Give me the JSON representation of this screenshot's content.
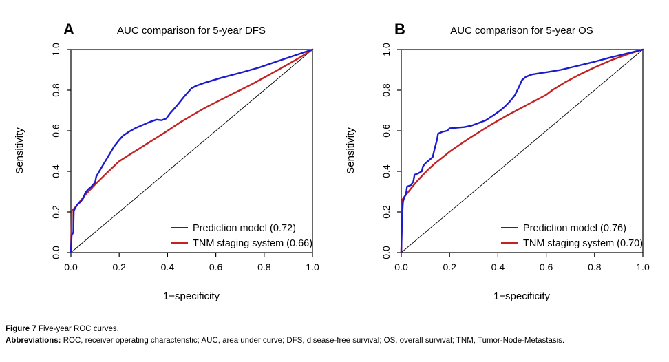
{
  "figure": {
    "caption_label": "Figure 7",
    "caption_text": "Five-year ROC curves.",
    "abbrev_label": "Abbreviations:",
    "abbrev_text": "ROC, receiver operating characteristic; AUC, area under curve; DFS, disease-free survival; OS, overall survival; TNM, Tumor-Node-Metastasis."
  },
  "colors": {
    "prediction_model": "#1b1bce",
    "tnm_staging": "#c32222",
    "reference": "#000000",
    "axis": "#000000"
  },
  "chart_data": [
    {
      "type": "line",
      "panel_label": "A",
      "title": "AUC comparison for 5-year DFS",
      "xlabel": "1−specificity",
      "ylabel": "Sensitivity",
      "xlim": [
        0,
        1
      ],
      "ylim": [
        0,
        1
      ],
      "grid": false,
      "legend_position": "bottom-right",
      "x_ticks": [
        0.0,
        0.2,
        0.4,
        0.6,
        0.8,
        1.0
      ],
      "y_ticks": [
        0.0,
        0.2,
        0.4,
        0.6,
        0.8,
        1.0
      ],
      "x_tick_labels": [
        "0.0",
        "0.2",
        "0.4",
        "0.6",
        "0.8",
        "1.0"
      ],
      "y_tick_labels": [
        "0.0",
        "0.2",
        "0.4",
        "0.6",
        "0.8",
        "1.0"
      ],
      "series": [
        {
          "name": "Prediction model",
          "auc": 0.72,
          "legend_label": "Prediction model (0.72)",
          "color": "#1b1bce",
          "role": "curve",
          "points": [
            [
              0,
              0
            ],
            [
              0.003,
              0.085
            ],
            [
              0.01,
              0.1
            ],
            [
              0.012,
              0.205
            ],
            [
              0.025,
              0.235
            ],
            [
              0.04,
              0.25
            ],
            [
              0.05,
              0.265
            ],
            [
              0.06,
              0.295
            ],
            [
              0.07,
              0.31
            ],
            [
              0.085,
              0.325
            ],
            [
              0.1,
              0.345
            ],
            [
              0.105,
              0.375
            ],
            [
              0.12,
              0.405
            ],
            [
              0.14,
              0.445
            ],
            [
              0.16,
              0.485
            ],
            [
              0.18,
              0.525
            ],
            [
              0.2,
              0.555
            ],
            [
              0.215,
              0.575
            ],
            [
              0.24,
              0.595
            ],
            [
              0.27,
              0.615
            ],
            [
              0.3,
              0.63
            ],
            [
              0.33,
              0.645
            ],
            [
              0.355,
              0.655
            ],
            [
              0.375,
              0.652
            ],
            [
              0.395,
              0.66
            ],
            [
              0.41,
              0.685
            ],
            [
              0.44,
              0.725
            ],
            [
              0.47,
              0.77
            ],
            [
              0.5,
              0.81
            ],
            [
              0.52,
              0.822
            ],
            [
              0.55,
              0.835
            ],
            [
              0.62,
              0.86
            ],
            [
              0.7,
              0.885
            ],
            [
              0.78,
              0.912
            ],
            [
              0.87,
              0.948
            ],
            [
              1,
              1
            ]
          ]
        },
        {
          "name": "TNM staging system",
          "auc": 0.66,
          "legend_label": "TNM staging system (0.66)",
          "color": "#c32222",
          "role": "curve",
          "points": [
            [
              0,
              0
            ],
            [
              0.004,
              0.205
            ],
            [
              0.02,
              0.225
            ],
            [
              0.04,
              0.255
            ],
            [
              0.06,
              0.285
            ],
            [
              0.08,
              0.31
            ],
            [
              0.1,
              0.335
            ],
            [
              0.13,
              0.37
            ],
            [
              0.16,
              0.405
            ],
            [
              0.2,
              0.45
            ],
            [
              0.24,
              0.48
            ],
            [
              0.28,
              0.51
            ],
            [
              0.32,
              0.54
            ],
            [
              0.36,
              0.57
            ],
            [
              0.4,
              0.6
            ],
            [
              0.45,
              0.64
            ],
            [
              0.5,
              0.675
            ],
            [
              0.55,
              0.71
            ],
            [
              0.6,
              0.74
            ],
            [
              0.65,
              0.77
            ],
            [
              0.7,
              0.8
            ],
            [
              0.75,
              0.83
            ],
            [
              0.8,
              0.862
            ],
            [
              0.85,
              0.895
            ],
            [
              0.9,
              0.928
            ],
            [
              0.95,
              0.962
            ],
            [
              1,
              1
            ]
          ]
        },
        {
          "name": "Reference",
          "color": "#000000",
          "role": "reference",
          "points": [
            [
              0,
              0
            ],
            [
              1,
              1
            ]
          ]
        }
      ]
    },
    {
      "type": "line",
      "panel_label": "B",
      "title": "AUC comparison for 5-year OS",
      "xlabel": "1−specificity",
      "ylabel": "Sensitivity",
      "xlim": [
        0,
        1
      ],
      "ylim": [
        0,
        1
      ],
      "grid": false,
      "legend_position": "bottom-right",
      "x_ticks": [
        0.0,
        0.2,
        0.4,
        0.6,
        0.8,
        1.0
      ],
      "y_ticks": [
        0.0,
        0.2,
        0.4,
        0.6,
        0.8,
        1.0
      ],
      "x_tick_labels": [
        "0.0",
        "0.2",
        "0.4",
        "0.6",
        "0.8",
        "1.0"
      ],
      "y_tick_labels": [
        "0.0",
        "0.2",
        "0.4",
        "0.6",
        "0.8",
        "1.0"
      ],
      "series": [
        {
          "name": "Prediction model",
          "auc": 0.76,
          "legend_label": "Prediction model (0.76)",
          "color": "#1b1bce",
          "role": "curve",
          "points": [
            [
              0,
              0
            ],
            [
              0.003,
              0.17
            ],
            [
              0.007,
              0.25
            ],
            [
              0.012,
              0.27
            ],
            [
              0.02,
              0.29
            ],
            [
              0.024,
              0.325
            ],
            [
              0.04,
              0.332
            ],
            [
              0.05,
              0.35
            ],
            [
              0.055,
              0.383
            ],
            [
              0.07,
              0.39
            ],
            [
              0.085,
              0.4
            ],
            [
              0.09,
              0.425
            ],
            [
              0.1,
              0.44
            ],
            [
              0.115,
              0.455
            ],
            [
              0.13,
              0.47
            ],
            [
              0.14,
              0.52
            ],
            [
              0.148,
              0.555
            ],
            [
              0.152,
              0.585
            ],
            [
              0.17,
              0.595
            ],
            [
              0.19,
              0.6
            ],
            [
              0.2,
              0.612
            ],
            [
              0.23,
              0.615
            ],
            [
              0.26,
              0.618
            ],
            [
              0.29,
              0.625
            ],
            [
              0.32,
              0.638
            ],
            [
              0.35,
              0.652
            ],
            [
              0.38,
              0.675
            ],
            [
              0.41,
              0.7
            ],
            [
              0.43,
              0.72
            ],
            [
              0.45,
              0.745
            ],
            [
              0.47,
              0.775
            ],
            [
              0.485,
              0.81
            ],
            [
              0.5,
              0.85
            ],
            [
              0.515,
              0.865
            ],
            [
              0.54,
              0.877
            ],
            [
              0.57,
              0.883
            ],
            [
              0.61,
              0.89
            ],
            [
              0.66,
              0.9
            ],
            [
              0.72,
              0.917
            ],
            [
              0.79,
              0.937
            ],
            [
              0.87,
              0.962
            ],
            [
              1,
              1
            ]
          ]
        },
        {
          "name": "TNM staging system",
          "auc": 0.7,
          "legend_label": "TNM staging system (0.70)",
          "color": "#c32222",
          "role": "curve",
          "points": [
            [
              0,
              0
            ],
            [
              0.004,
              0.26
            ],
            [
              0.015,
              0.278
            ],
            [
              0.03,
              0.3
            ],
            [
              0.05,
              0.33
            ],
            [
              0.07,
              0.358
            ],
            [
              0.09,
              0.383
            ],
            [
              0.11,
              0.407
            ],
            [
              0.14,
              0.44
            ],
            [
              0.17,
              0.468
            ],
            [
              0.2,
              0.497
            ],
            [
              0.24,
              0.53
            ],
            [
              0.28,
              0.562
            ],
            [
              0.32,
              0.592
            ],
            [
              0.36,
              0.622
            ],
            [
              0.4,
              0.65
            ],
            [
              0.44,
              0.677
            ],
            [
              0.48,
              0.702
            ],
            [
              0.52,
              0.727
            ],
            [
              0.56,
              0.752
            ],
            [
              0.6,
              0.777
            ],
            [
              0.625,
              0.8
            ],
            [
              0.68,
              0.84
            ],
            [
              0.74,
              0.878
            ],
            [
              0.8,
              0.912
            ],
            [
              0.87,
              0.948
            ],
            [
              0.94,
              0.978
            ],
            [
              1,
              1
            ]
          ]
        },
        {
          "name": "Reference",
          "color": "#000000",
          "role": "reference",
          "points": [
            [
              0,
              0
            ],
            [
              1,
              1
            ]
          ]
        }
      ]
    }
  ]
}
